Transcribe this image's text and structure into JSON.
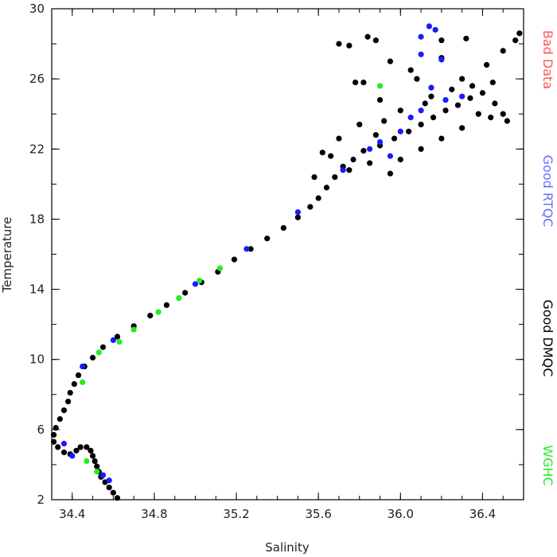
{
  "chart_data": {
    "type": "scatter",
    "title": "",
    "xlabel": "Salinity",
    "ylabel": "Temperature",
    "xlim": [
      34.3,
      36.6
    ],
    "ylim": [
      2,
      30
    ],
    "xticks": [
      34.4,
      34.8,
      35.2,
      35.6,
      36.0,
      36.4
    ],
    "xtick_labels": [
      "34.4",
      "34.8",
      "35.2",
      "35.6",
      "36.0",
      "36.4"
    ],
    "yticks": [
      2,
      6,
      10,
      14,
      18,
      22,
      26,
      30
    ],
    "ytick_labels": [
      "2",
      "6",
      "10",
      "14",
      "18",
      "22",
      "26",
      "30"
    ],
    "grid": false,
    "legend_position": "right (vertical text)",
    "legend": [
      {
        "name": "Bad Data",
        "color": "#ff5555"
      },
      {
        "name": "Good RTQC",
        "color": "#6a6aff"
      },
      {
        "name": "Good DMQC",
        "color": "#000000"
      },
      {
        "name": "WGHC",
        "color": "#22ee22"
      }
    ],
    "series": [
      {
        "name": "Good DMQC",
        "color": "#000000",
        "points": [
          [
            34.62,
            2.1
          ],
          [
            34.6,
            2.4
          ],
          [
            34.58,
            2.7
          ],
          [
            34.56,
            3.0
          ],
          [
            34.54,
            3.3
          ],
          [
            34.53,
            3.6
          ],
          [
            34.52,
            3.9
          ],
          [
            34.51,
            4.2
          ],
          [
            34.5,
            4.5
          ],
          [
            34.49,
            4.8
          ],
          [
            34.47,
            5.0
          ],
          [
            34.44,
            5.0
          ],
          [
            34.42,
            4.8
          ],
          [
            34.39,
            4.6
          ],
          [
            34.36,
            4.7
          ],
          [
            34.33,
            5.0
          ],
          [
            34.31,
            5.3
          ],
          [
            34.31,
            5.7
          ],
          [
            34.32,
            6.1
          ],
          [
            34.34,
            6.6
          ],
          [
            34.36,
            7.1
          ],
          [
            34.38,
            7.6
          ],
          [
            34.39,
            8.1
          ],
          [
            34.41,
            8.6
          ],
          [
            34.43,
            9.1
          ],
          [
            34.46,
            9.6
          ],
          [
            34.5,
            10.1
          ],
          [
            34.55,
            10.7
          ],
          [
            34.62,
            11.3
          ],
          [
            34.7,
            11.9
          ],
          [
            34.78,
            12.5
          ],
          [
            34.86,
            13.1
          ],
          [
            34.95,
            13.8
          ],
          [
            35.03,
            14.4
          ],
          [
            35.11,
            15.0
          ],
          [
            35.19,
            15.7
          ],
          [
            35.27,
            16.3
          ],
          [
            35.35,
            16.9
          ],
          [
            35.43,
            17.5
          ],
          [
            35.5,
            18.1
          ],
          [
            35.56,
            18.7
          ],
          [
            35.6,
            19.2
          ],
          [
            35.64,
            19.8
          ],
          [
            35.68,
            20.4
          ],
          [
            35.72,
            21.0
          ],
          [
            35.77,
            21.4
          ],
          [
            35.82,
            21.9
          ],
          [
            35.9,
            22.2
          ],
          [
            35.97,
            22.6
          ],
          [
            36.04,
            23.0
          ],
          [
            36.1,
            23.4
          ],
          [
            36.16,
            23.8
          ],
          [
            36.22,
            24.2
          ],
          [
            36.28,
            24.5
          ],
          [
            36.34,
            24.9
          ],
          [
            36.4,
            25.2
          ],
          [
            36.46,
            24.6
          ],
          [
            36.5,
            24.0
          ],
          [
            36.52,
            23.6
          ],
          [
            36.3,
            26.0
          ],
          [
            36.42,
            26.8
          ],
          [
            36.5,
            27.6
          ],
          [
            36.56,
            28.2
          ],
          [
            36.58,
            28.6
          ],
          [
            36.2,
            27.2
          ],
          [
            36.05,
            26.5
          ],
          [
            35.95,
            27.0
          ],
          [
            35.88,
            28.2
          ],
          [
            35.84,
            28.4
          ],
          [
            35.75,
            27.9
          ],
          [
            35.7,
            28.0
          ],
          [
            35.82,
            25.8
          ],
          [
            35.78,
            25.8
          ],
          [
            35.9,
            24.8
          ],
          [
            35.8,
            23.4
          ],
          [
            35.7,
            22.6
          ],
          [
            35.66,
            21.6
          ],
          [
            35.75,
            20.8
          ],
          [
            35.85,
            21.2
          ],
          [
            36.0,
            21.4
          ],
          [
            36.1,
            22.0
          ],
          [
            36.2,
            22.6
          ],
          [
            36.3,
            23.2
          ],
          [
            36.0,
            24.2
          ],
          [
            35.92,
            23.6
          ],
          [
            36.12,
            24.6
          ],
          [
            36.25,
            25.4
          ],
          [
            36.35,
            25.6
          ],
          [
            36.15,
            25.0
          ],
          [
            35.88,
            22.8
          ],
          [
            35.95,
            20.6
          ],
          [
            35.62,
            21.8
          ],
          [
            35.58,
            20.4
          ],
          [
            36.08,
            26.0
          ],
          [
            36.2,
            28.2
          ],
          [
            36.32,
            28.3
          ],
          [
            36.45,
            25.8
          ],
          [
            36.38,
            24.0
          ],
          [
            36.44,
            23.8
          ]
        ]
      },
      {
        "name": "Good RTQC",
        "color": "#1a1aff",
        "points": [
          [
            34.58,
            3.1
          ],
          [
            34.55,
            3.4
          ],
          [
            34.4,
            4.5
          ],
          [
            34.36,
            5.2
          ],
          [
            34.45,
            9.6
          ],
          [
            34.6,
            11.1
          ],
          [
            35.0,
            14.3
          ],
          [
            35.25,
            16.3
          ],
          [
            35.5,
            18.4
          ],
          [
            35.72,
            20.8
          ],
          [
            35.9,
            22.4
          ],
          [
            36.0,
            23.0
          ],
          [
            36.1,
            24.2
          ],
          [
            36.15,
            25.5
          ],
          [
            36.1,
            28.4
          ],
          [
            36.14,
            29.0
          ],
          [
            36.17,
            28.8
          ],
          [
            36.1,
            27.4
          ],
          [
            36.2,
            27.1
          ],
          [
            35.95,
            21.6
          ],
          [
            36.05,
            23.8
          ],
          [
            36.22,
            24.8
          ],
          [
            35.85,
            22.0
          ],
          [
            36.3,
            25.0
          ]
        ]
      },
      {
        "name": "WGHC",
        "color": "#22ee22",
        "points": [
          [
            34.45,
            8.7
          ],
          [
            34.53,
            10.4
          ],
          [
            34.63,
            11.0
          ],
          [
            34.7,
            11.7
          ],
          [
            34.82,
            12.7
          ],
          [
            34.92,
            13.5
          ],
          [
            35.02,
            14.5
          ],
          [
            35.12,
            15.2
          ],
          [
            34.47,
            4.2
          ],
          [
            34.52,
            3.6
          ],
          [
            35.9,
            25.6
          ]
        ]
      }
    ]
  }
}
